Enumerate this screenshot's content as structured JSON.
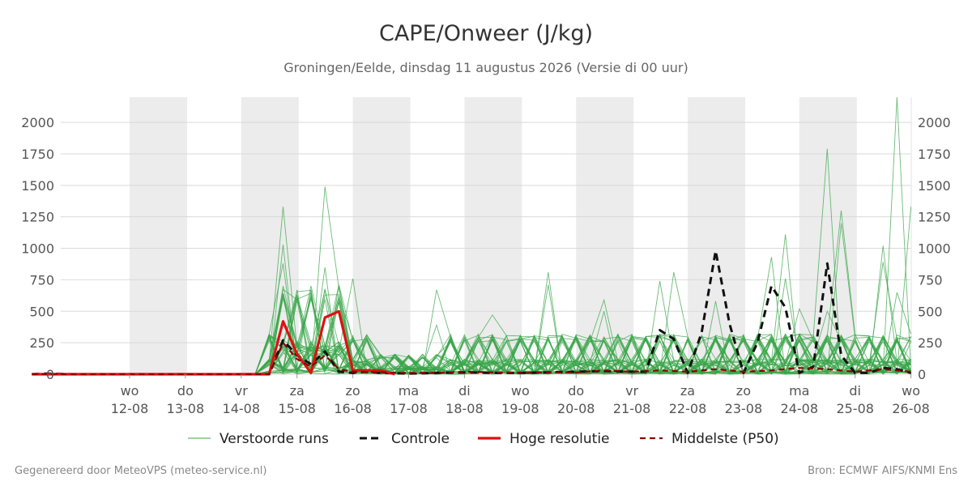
{
  "header": {
    "title": "CAPE/Onweer (J/kg)",
    "subtitle": "Groningen/Eelde, dinsdag 11 augustus 2026 (Versie di 00 uur)"
  },
  "footer": {
    "left": "Gegenereerd door MeteoVPS (meteo-service.nl)",
    "right": "Bron: ECMWF AIFS/KNMI Ens"
  },
  "colors": {
    "ensemble": "#3aa64a",
    "control": "#111111",
    "highres": "#dd1111",
    "median": "#8b0000",
    "night_band": "#ececec",
    "grid": "#d9d9d9"
  },
  "chart_data": {
    "type": "line",
    "title": "CAPE/Onweer (J/kg)",
    "ylim": [
      0,
      2200
    ],
    "xlim": [
      0,
      15
    ],
    "y_ticks": [
      0,
      250,
      500,
      750,
      1000,
      1250,
      1500,
      1750,
      2000
    ],
    "x_ticks": [
      {
        "x": 1,
        "day": "wo",
        "date": "12-08"
      },
      {
        "x": 2,
        "day": "do",
        "date": "13-08"
      },
      {
        "x": 3,
        "day": "vr",
        "date": "14-08"
      },
      {
        "x": 4,
        "day": "za",
        "date": "15-08"
      },
      {
        "x": 5,
        "day": "zo",
        "date": "16-08"
      },
      {
        "x": 6,
        "day": "ma",
        "date": "17-08"
      },
      {
        "x": 7,
        "day": "di",
        "date": "18-08"
      },
      {
        "x": 8,
        "day": "wo",
        "date": "19-08"
      },
      {
        "x": 9,
        "day": "do",
        "date": "20-08"
      },
      {
        "x": 10,
        "day": "vr",
        "date": "21-08"
      },
      {
        "x": 11,
        "day": "za",
        "date": "22-08"
      },
      {
        "x": 12,
        "day": "zo",
        "date": "23-08"
      },
      {
        "x": 13,
        "day": "ma",
        "date": "24-08"
      },
      {
        "x": 14,
        "day": "di",
        "date": "25-08"
      },
      {
        "x": 15,
        "day": "wo",
        "date": "26-08"
      }
    ],
    "shaded_days": [
      1,
      3,
      5,
      7,
      9,
      11,
      13
    ],
    "grid": true,
    "legend_position": "bottom",
    "legend": [
      {
        "key": "ensemble",
        "label": "Verstoorde runs",
        "style": "thin"
      },
      {
        "key": "control",
        "label": "Controle",
        "style": "dashed"
      },
      {
        "key": "highres",
        "label": "Hoge resolutie",
        "style": "thick"
      },
      {
        "key": "median",
        "label": "Middelste (P50)",
        "style": "dashed-thin"
      }
    ],
    "series": [
      {
        "key": "control",
        "name": "Controle",
        "points": [
          [
            -0.75,
            0
          ],
          [
            -0.5,
            5
          ],
          [
            0,
            0
          ],
          [
            2,
            0
          ],
          [
            3,
            0
          ],
          [
            3.5,
            0
          ],
          [
            3.75,
            270
          ],
          [
            4,
            150
          ],
          [
            4.25,
            80
          ],
          [
            4.5,
            180
          ],
          [
            4.75,
            20
          ],
          [
            5,
            10
          ],
          [
            5.25,
            20
          ],
          [
            5.5,
            10
          ],
          [
            6,
            5
          ],
          [
            6.5,
            10
          ],
          [
            7,
            15
          ],
          [
            7.5,
            10
          ],
          [
            8,
            10
          ],
          [
            8.5,
            15
          ],
          [
            9,
            20
          ],
          [
            9.5,
            25
          ],
          [
            10,
            20
          ],
          [
            10.25,
            20
          ],
          [
            10.5,
            350
          ],
          [
            10.75,
            280
          ],
          [
            11,
            10
          ],
          [
            11.25,
            330
          ],
          [
            11.5,
            980
          ],
          [
            11.75,
            400
          ],
          [
            12,
            10
          ],
          [
            12.25,
            250
          ],
          [
            12.5,
            700
          ],
          [
            12.75,
            530
          ],
          [
            13,
            10
          ],
          [
            13.25,
            60
          ],
          [
            13.5,
            880
          ],
          [
            13.75,
            150
          ],
          [
            14,
            10
          ],
          [
            14.25,
            10
          ],
          [
            14.5,
            50
          ],
          [
            14.75,
            40
          ],
          [
            15,
            10
          ]
        ]
      },
      {
        "key": "highres",
        "name": "Hoge resolutie",
        "points": [
          [
            -0.75,
            0
          ],
          [
            0,
            0
          ],
          [
            3.5,
            0
          ],
          [
            3.75,
            420
          ],
          [
            4,
            160
          ],
          [
            4.25,
            10
          ],
          [
            4.5,
            450
          ],
          [
            4.75,
            500
          ],
          [
            5,
            30
          ],
          [
            5.25,
            30
          ],
          [
            5.5,
            30
          ],
          [
            5.75,
            0
          ]
        ]
      },
      {
        "key": "median",
        "name": "Middelste (P50)",
        "points": [
          [
            -0.75,
            0
          ],
          [
            0,
            0
          ],
          [
            3.5,
            0
          ],
          [
            3.75,
            250
          ],
          [
            4,
            120
          ],
          [
            4.25,
            60
          ],
          [
            4.5,
            150
          ],
          [
            4.75,
            40
          ],
          [
            5,
            20
          ],
          [
            5.5,
            15
          ],
          [
            6,
            10
          ],
          [
            6.5,
            10
          ],
          [
            7,
            20
          ],
          [
            7.5,
            15
          ],
          [
            8,
            10
          ],
          [
            8.5,
            15
          ],
          [
            9,
            15
          ],
          [
            9.5,
            30
          ],
          [
            10,
            20
          ],
          [
            10.5,
            30
          ],
          [
            11,
            20
          ],
          [
            11.5,
            40
          ],
          [
            12,
            20
          ],
          [
            12.5,
            30
          ],
          [
            13,
            50
          ],
          [
            13.5,
            40
          ],
          [
            14,
            20
          ],
          [
            14.5,
            40
          ],
          [
            15,
            20
          ]
        ]
      }
    ],
    "ensemble": {
      "name": "Verstoorde runs",
      "members": 50,
      "start": -0.75,
      "step": 0.25,
      "peaks": [
        [
          3.75,
          1330
        ],
        [
          3.75,
          1030
        ],
        [
          3.75,
          880
        ],
        [
          4.5,
          1490
        ],
        [
          4.5,
          850
        ],
        [
          4.75,
          710
        ],
        [
          5,
          760
        ],
        [
          6.5,
          670
        ],
        [
          6.5,
          390
        ],
        [
          7.5,
          470
        ],
        [
          8.5,
          810
        ],
        [
          8.5,
          710
        ],
        [
          9.5,
          590
        ],
        [
          9.5,
          500
        ],
        [
          10.5,
          740
        ],
        [
          10.75,
          810
        ],
        [
          11.5,
          580
        ],
        [
          12.5,
          930
        ],
        [
          12.75,
          1110
        ],
        [
          12.75,
          760
        ],
        [
          13,
          520
        ],
        [
          13.5,
          1790
        ],
        [
          13.75,
          1300
        ],
        [
          13.75,
          1200
        ],
        [
          14.5,
          1020
        ],
        [
          14.5,
          890
        ],
        [
          14.75,
          2210
        ],
        [
          15,
          1330
        ],
        [
          14.75,
          650
        ],
        [
          13.5,
          500
        ]
      ]
    }
  }
}
